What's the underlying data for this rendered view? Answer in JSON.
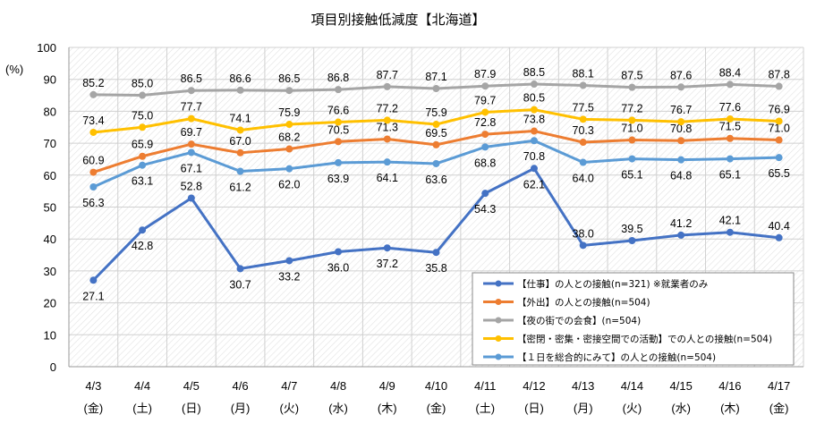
{
  "chart_data": {
    "type": "line",
    "title": "項目別接触低減度【北海道】",
    "ylabel": "(%)",
    "ylim": [
      0,
      100
    ],
    "yticks": [
      0,
      10,
      20,
      30,
      40,
      50,
      60,
      70,
      80,
      90,
      100
    ],
    "grid": true,
    "legend_position": "bottom-right",
    "categories": [
      "4/3",
      "4/4",
      "4/5",
      "4/6",
      "4/7",
      "4/8",
      "4/9",
      "4/10",
      "4/11",
      "4/12",
      "4/13",
      "4/14",
      "4/15",
      "4/16",
      "4/17"
    ],
    "weekdays": [
      "(金)",
      "(土)",
      "(日)",
      "(月)",
      "(火)",
      "(水)",
      "(木)",
      "(金)",
      "(土)",
      "(日)",
      "(月)",
      "(火)",
      "(水)",
      "(木)",
      "(金)"
    ],
    "series": [
      {
        "name": "【仕事】の人との接触(n=321) ※就業者のみ",
        "color": "#4472C4",
        "values": [
          27.1,
          42.8,
          52.8,
          30.7,
          33.2,
          36.0,
          37.2,
          35.8,
          54.3,
          62.1,
          38.0,
          39.5,
          41.2,
          42.1,
          40.4
        ],
        "labels": [
          "27.1",
          "42.8",
          "52.8",
          "30.7",
          "33.2",
          "36.0",
          "37.2",
          "35.8",
          "54.3",
          "62.1",
          "38.0",
          "39.5",
          "41.2",
          "42.1",
          "40.4"
        ]
      },
      {
        "name": "【外出】の人との接触(n=504)",
        "color": "#ED7D31",
        "values": [
          60.9,
          65.9,
          69.7,
          67.0,
          68.2,
          70.5,
          71.3,
          69.5,
          72.8,
          73.8,
          70.3,
          71.0,
          70.8,
          71.5,
          71.0
        ],
        "labels": [
          "60.9",
          "65.9",
          "69.7",
          "67.0",
          "68.2",
          "70.5",
          "71.3",
          "69.5",
          "72.8",
          "73.8",
          "70.3",
          "71.0",
          "70.8",
          "71.5",
          "71.0"
        ]
      },
      {
        "name": "【夜の街での会食】(n=504)",
        "color": "#A5A5A5",
        "values": [
          85.2,
          85.0,
          86.5,
          86.6,
          86.5,
          86.8,
          87.7,
          87.1,
          87.9,
          88.5,
          88.1,
          87.5,
          87.6,
          88.4,
          87.8
        ],
        "labels": [
          "85.2",
          "85.0",
          "86.5",
          "86.6",
          "86.5",
          "86.8",
          "87.7",
          "87.1",
          "87.9",
          "88.5",
          "88.1",
          "87.5",
          "87.6",
          "88.4",
          "87.8"
        ]
      },
      {
        "name": "【密閉・密集・密接空間での活動】での人との接触(n=504)",
        "color": "#FFC000",
        "values": [
          73.4,
          75.0,
          77.7,
          74.1,
          75.9,
          76.6,
          77.2,
          75.9,
          79.7,
          80.5,
          77.5,
          77.2,
          76.7,
          77.6,
          76.9
        ],
        "labels": [
          "73.4",
          "75.0",
          "77.7",
          "74.1",
          "75.9",
          "76.6",
          "77.2",
          "75.9",
          "79.7",
          "80.5",
          "77.5",
          "77.2",
          "76.7",
          "77.6",
          "76.9"
        ]
      },
      {
        "name": "【１日を総合的にみて】の人との接触(n=504)",
        "color": "#5B9BD5",
        "values": [
          56.3,
          63.1,
          67.1,
          61.2,
          62.0,
          63.9,
          64.1,
          63.6,
          68.8,
          70.8,
          64.0,
          65.1,
          64.8,
          65.1,
          65.5
        ],
        "labels": [
          "56.3",
          "63.1",
          "67.1",
          "61.2",
          "62.0",
          "63.9",
          "64.1",
          "63.6",
          "68.8",
          "70.8",
          "64.0",
          "65.1",
          "64.8",
          "65.1",
          "65.5"
        ]
      }
    ]
  }
}
